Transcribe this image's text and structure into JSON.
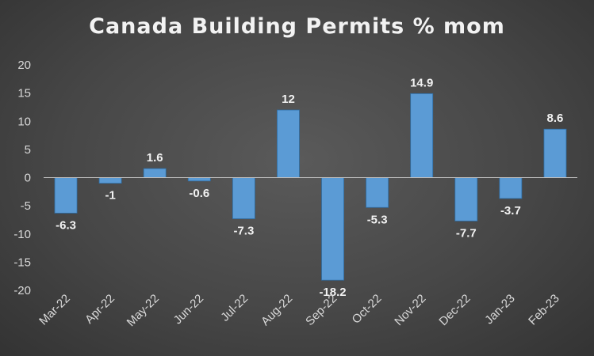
{
  "chart_data": {
    "type": "bar",
    "title": "Canada Building Permits % mom",
    "categories": [
      "Mar-22",
      "Apr-22",
      "May-22",
      "Jun-22",
      "Jul-22",
      "Aug-22",
      "Sep-22",
      "Oct-22",
      "Nov-22",
      "Dec-22",
      "Jan-23",
      "Feb-23"
    ],
    "values": [
      -6.3,
      -1,
      1.6,
      -0.6,
      -7.3,
      12,
      -18.2,
      -5.3,
      14.9,
      -7.7,
      -3.7,
      8.6
    ],
    "ylim": [
      -20,
      20
    ],
    "yticks": [
      20,
      15,
      10,
      5,
      0,
      -5,
      -10,
      -15,
      -20
    ],
    "grid": false,
    "legend": "none",
    "bar_color": "#5b9bd5",
    "label_color": "#f2f2f2"
  }
}
